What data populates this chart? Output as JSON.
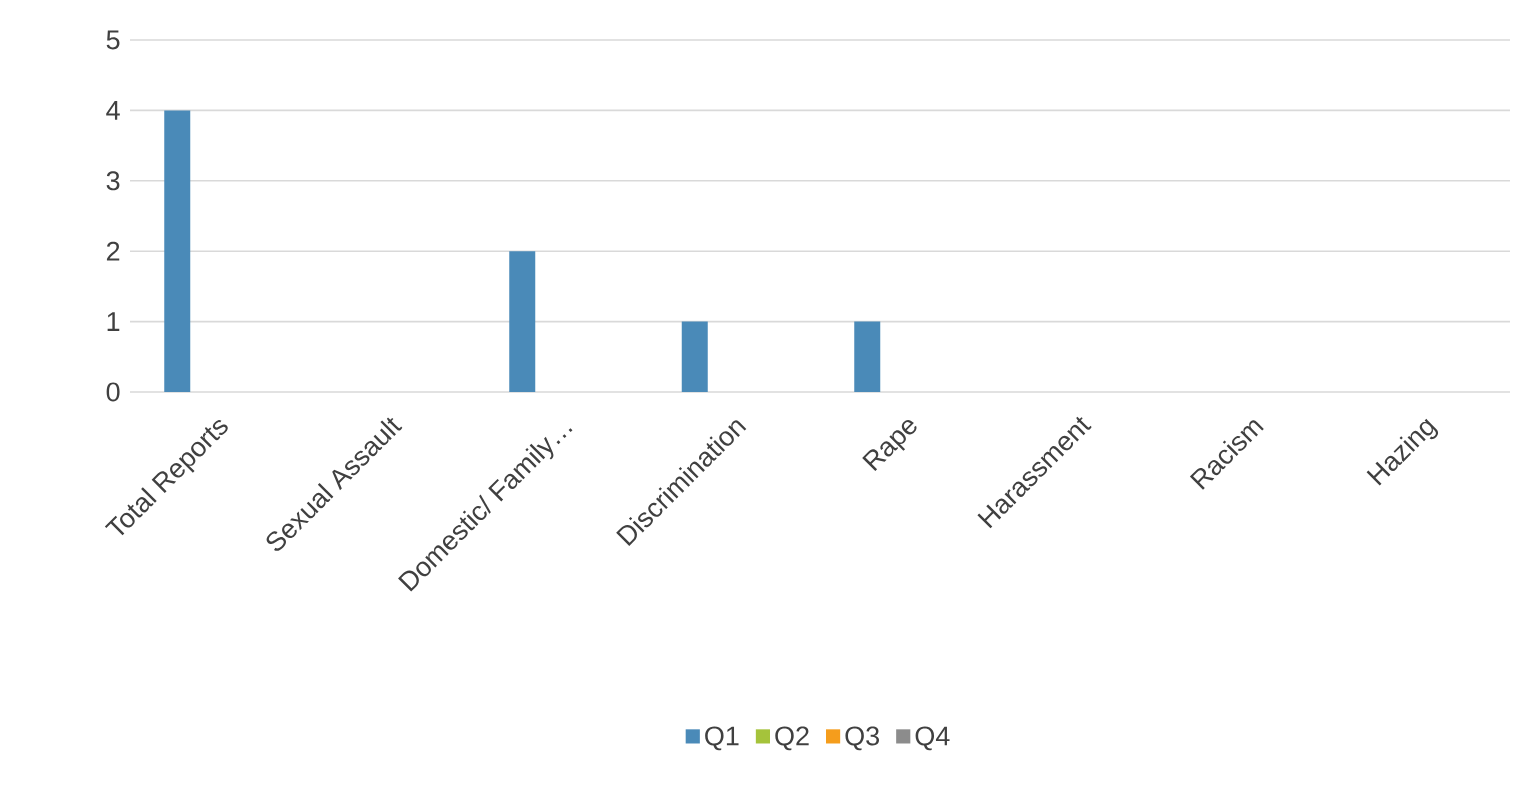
{
  "chart_data": {
    "type": "bar",
    "categories": [
      "Total Reports",
      "Sexual Assault",
      "Domestic/ Family…",
      "Discrimination",
      "Rape",
      "Harassment",
      "Racism",
      "Hazing"
    ],
    "series": [
      {
        "name": "Q1",
        "color": "#4a8ab8",
        "values": [
          4,
          0,
          2,
          1,
          1,
          0,
          0,
          0
        ]
      },
      {
        "name": "Q2",
        "color": "#a5c33b",
        "values": [
          0,
          0,
          0,
          0,
          0,
          0,
          0,
          0
        ]
      },
      {
        "name": "Q3",
        "color": "#f59d1c",
        "values": [
          0,
          0,
          0,
          0,
          0,
          0,
          0,
          0
        ]
      },
      {
        "name": "Q4",
        "color": "#8c8c8c",
        "values": [
          0,
          0,
          0,
          0,
          0,
          0,
          0,
          0
        ]
      }
    ],
    "ylim": [
      0,
      5
    ],
    "yticks": [
      0,
      1,
      2,
      3,
      4,
      5
    ],
    "grid": "y",
    "legend": "bottom"
  }
}
